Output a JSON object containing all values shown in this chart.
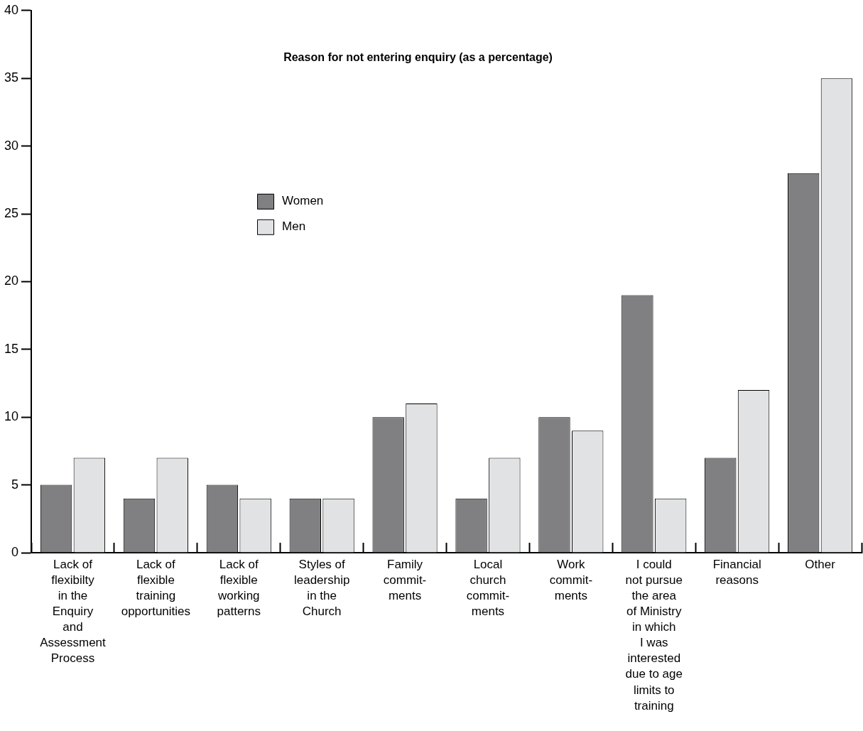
{
  "chart_data": {
    "type": "bar",
    "title": "Reason for not entering enquiry (as a percentage)",
    "categories": [
      "Lack of\nflexibilty\nin the\nEnquiry\nand\nAssessment\nProcess",
      "Lack of\nflexible\ntraining\nopportunities",
      "Lack of\nflexible\nworking\npatterns",
      "Styles of\nleadership\nin the\nChurch",
      "Family\ncommit-\nments",
      "Local\nchurch\ncommit-\nments",
      "Work\ncommit-\nments",
      "I could\nnot pursue\nthe area\nof Ministry\nin which\nI was\ninterested\ndue to age\nlimits to\ntraining",
      "Financial\nreasons",
      "Other"
    ],
    "series": [
      {
        "name": "Women",
        "color": "#808083",
        "values": [
          5,
          4,
          5,
          4,
          10,
          4,
          10,
          19,
          7,
          28
        ]
      },
      {
        "name": "Men",
        "color": "#e1e2e4",
        "values": [
          7,
          7,
          4,
          4,
          11,
          7,
          9,
          4,
          12,
          35
        ]
      }
    ],
    "ylim": [
      0,
      40
    ],
    "yticks": [
      0,
      5,
      10,
      15,
      20,
      25,
      30,
      35,
      40
    ],
    "grid": false,
    "legend": "top left"
  }
}
